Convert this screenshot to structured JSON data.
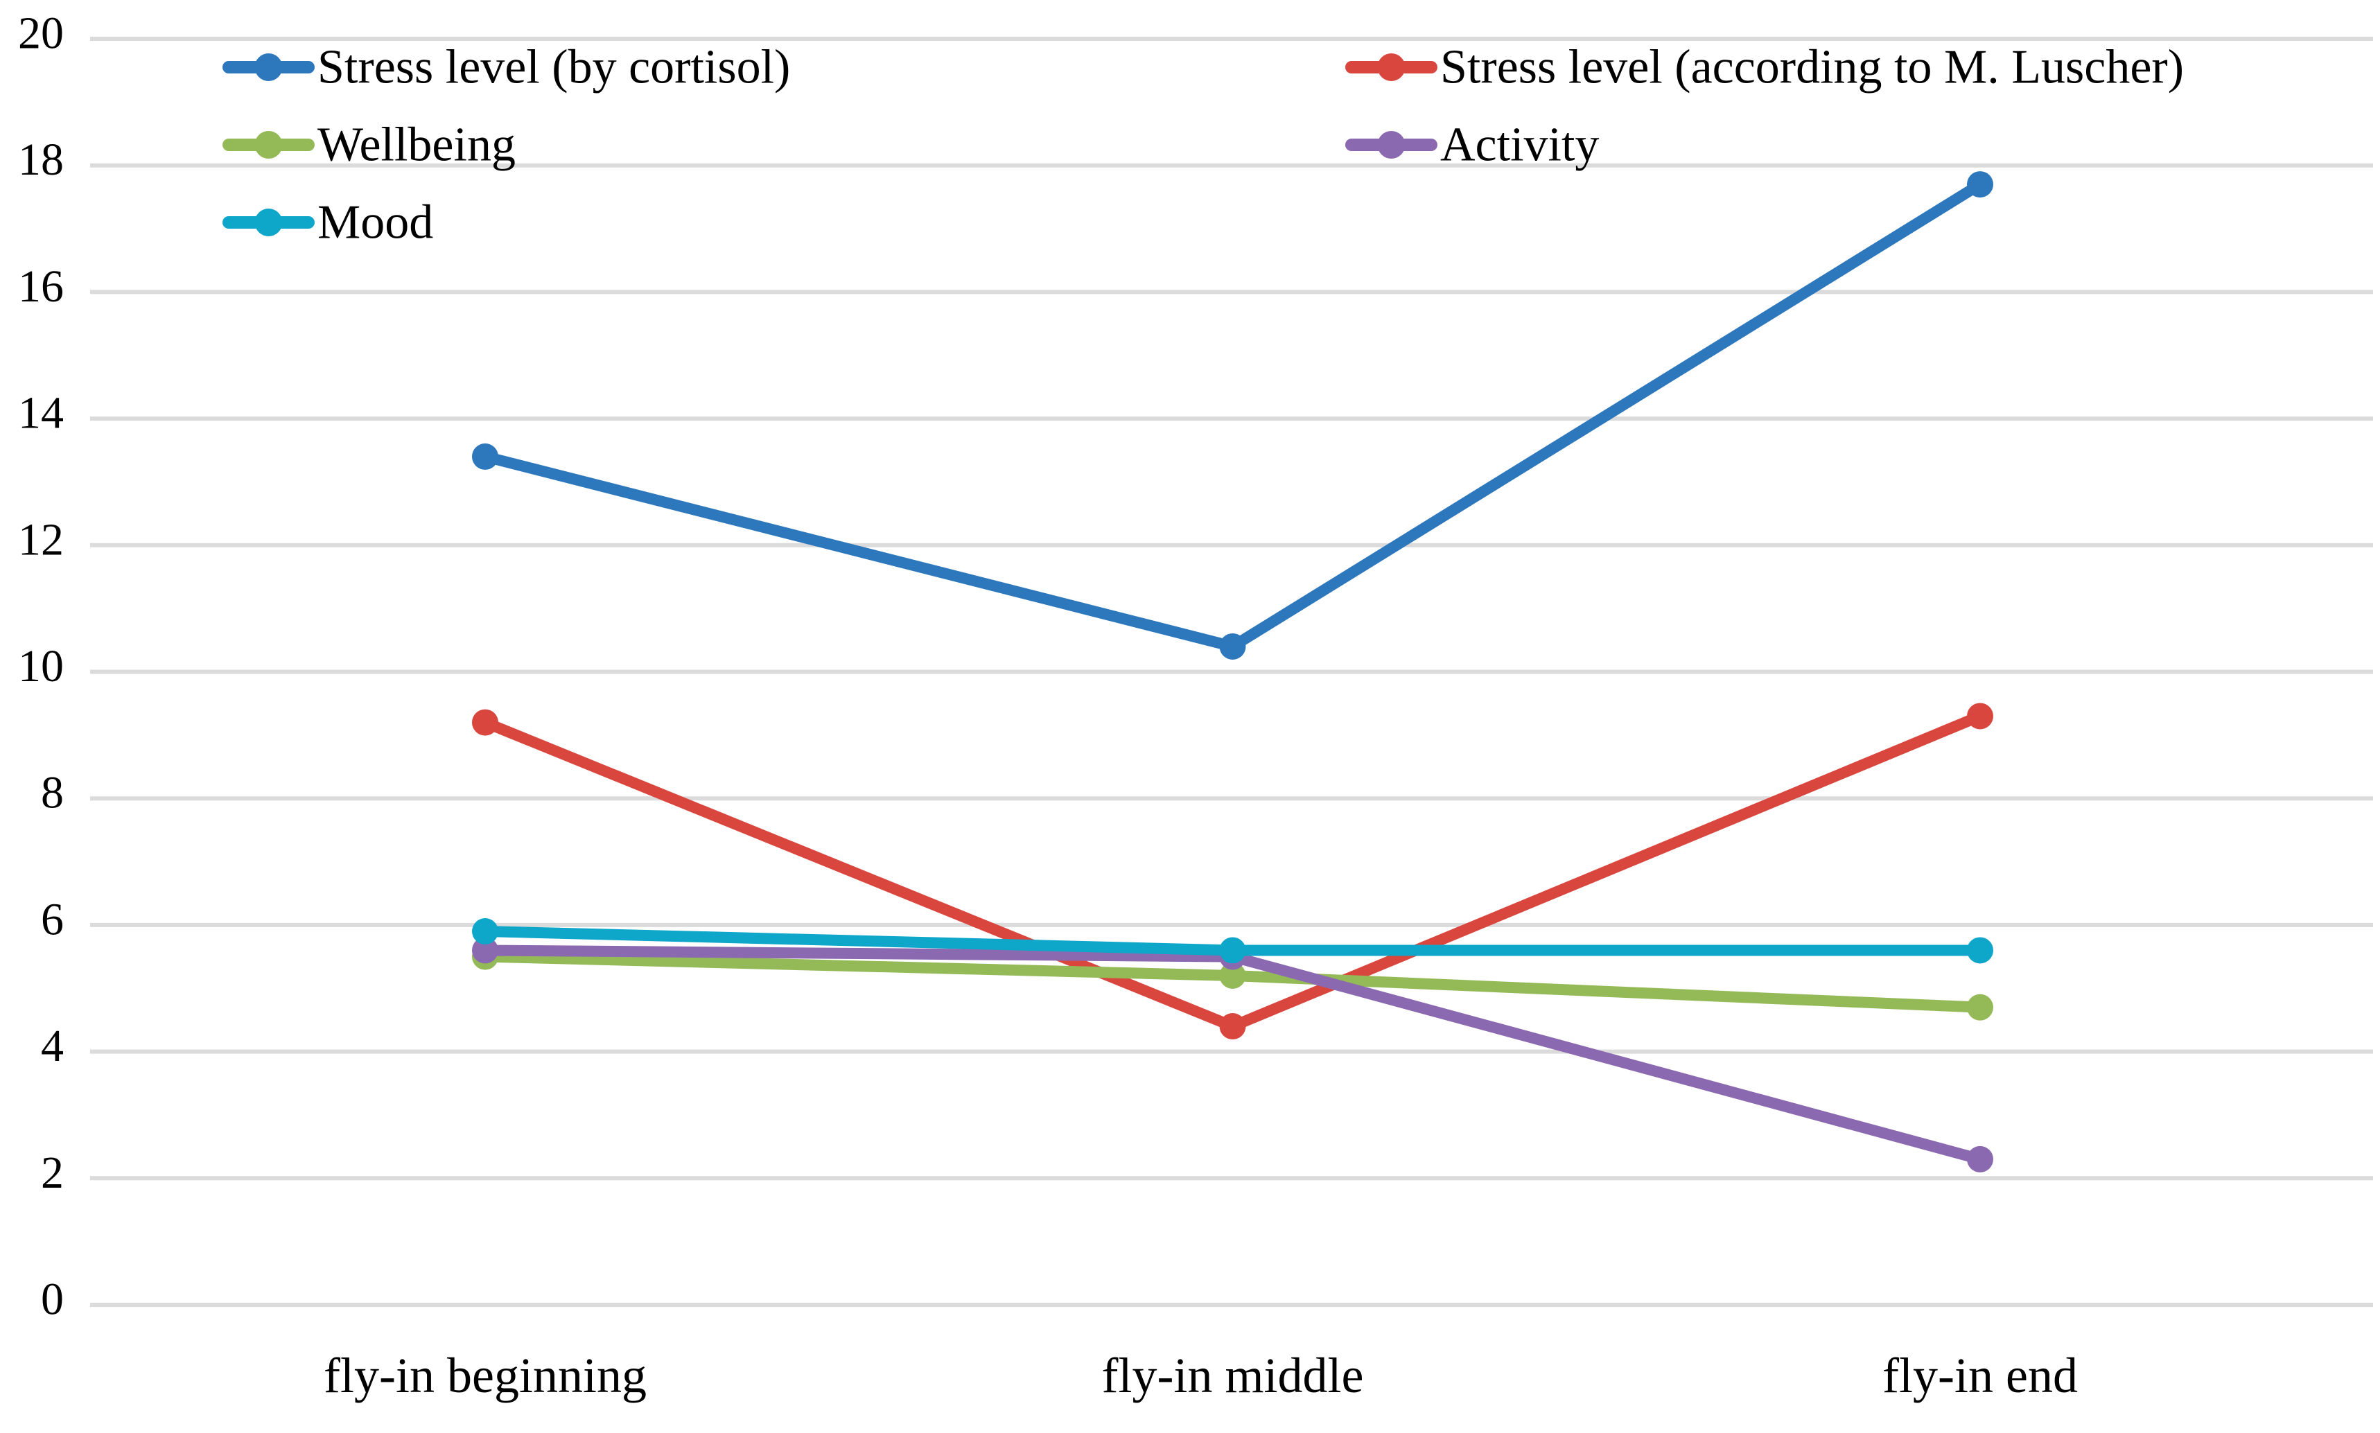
{
  "chart_data": {
    "type": "line",
    "title": "",
    "xlabel": "",
    "ylabel": "",
    "categories": [
      "fly-in beginning",
      "fly-in middle",
      "fly-in end"
    ],
    "series": [
      {
        "name": "Stress level (by cortisol)",
        "color": "#2D77BD",
        "values": [
          13.4,
          10.4,
          17.7
        ]
      },
      {
        "name": "Stress level (according to M. Luscher)",
        "color": "#D9463E",
        "values": [
          9.2,
          4.4,
          9.3
        ]
      },
      {
        "name": "Wellbeing",
        "color": "#94BA58",
        "values": [
          5.5,
          5.2,
          4.7
        ]
      },
      {
        "name": "Activity",
        "color": "#8B69B0",
        "values": [
          5.6,
          5.5,
          2.3
        ]
      },
      {
        "name": "Mood",
        "color": "#0FA7C9",
        "values": [
          5.9,
          5.6,
          5.6
        ]
      }
    ],
    "ylim": [
      0,
      20
    ],
    "yticks": [
      0,
      2,
      4,
      6,
      8,
      10,
      12,
      14,
      16,
      18,
      20
    ],
    "grid": "horizontal",
    "gridline_color": "#DBDBDB",
    "text_color": "#000000",
    "legend_position": "top-inside",
    "legend_columns": [
      [
        0,
        2,
        4
      ],
      [
        1,
        3
      ]
    ],
    "marker": "circle"
  }
}
